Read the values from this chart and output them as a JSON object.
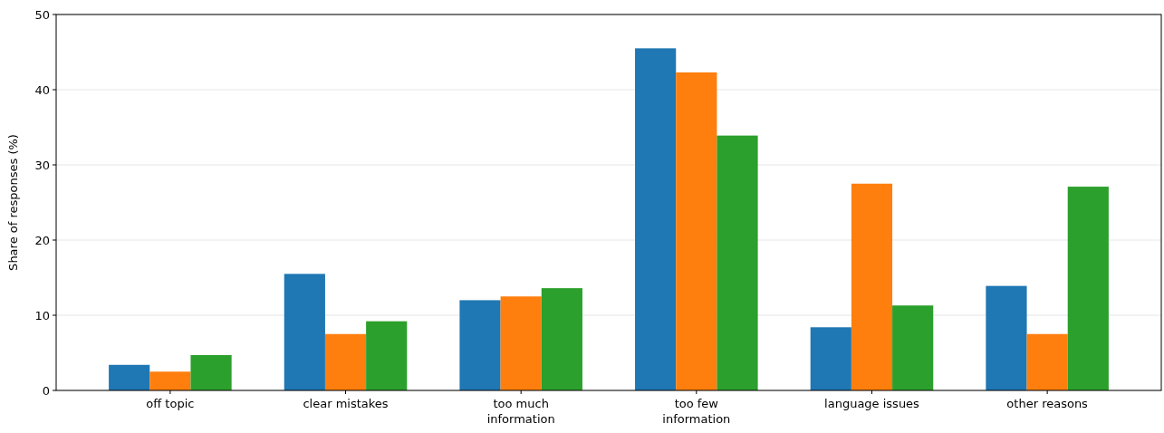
{
  "chart_data": {
    "type": "bar",
    "ylabel": "Share of responses (%)",
    "categories": [
      "off topic",
      "clear mistakes",
      "too much\ninformation",
      "too few\ninformation",
      "language issues",
      "other reasons"
    ],
    "series": [
      {
        "color": "#1f77b4",
        "values": [
          3.4,
          15.5,
          12.0,
          45.5,
          8.4,
          13.9
        ]
      },
      {
        "color": "#ff7f0e",
        "values": [
          2.5,
          7.5,
          12.5,
          42.3,
          27.5,
          7.5
        ]
      },
      {
        "color": "#2ca02c",
        "values": [
          4.7,
          9.2,
          13.6,
          33.9,
          11.3,
          27.1
        ]
      }
    ],
    "ylim": [
      0,
      50
    ],
    "yticks": [
      0,
      10,
      20,
      30,
      40,
      50
    ],
    "grid": "y"
  }
}
